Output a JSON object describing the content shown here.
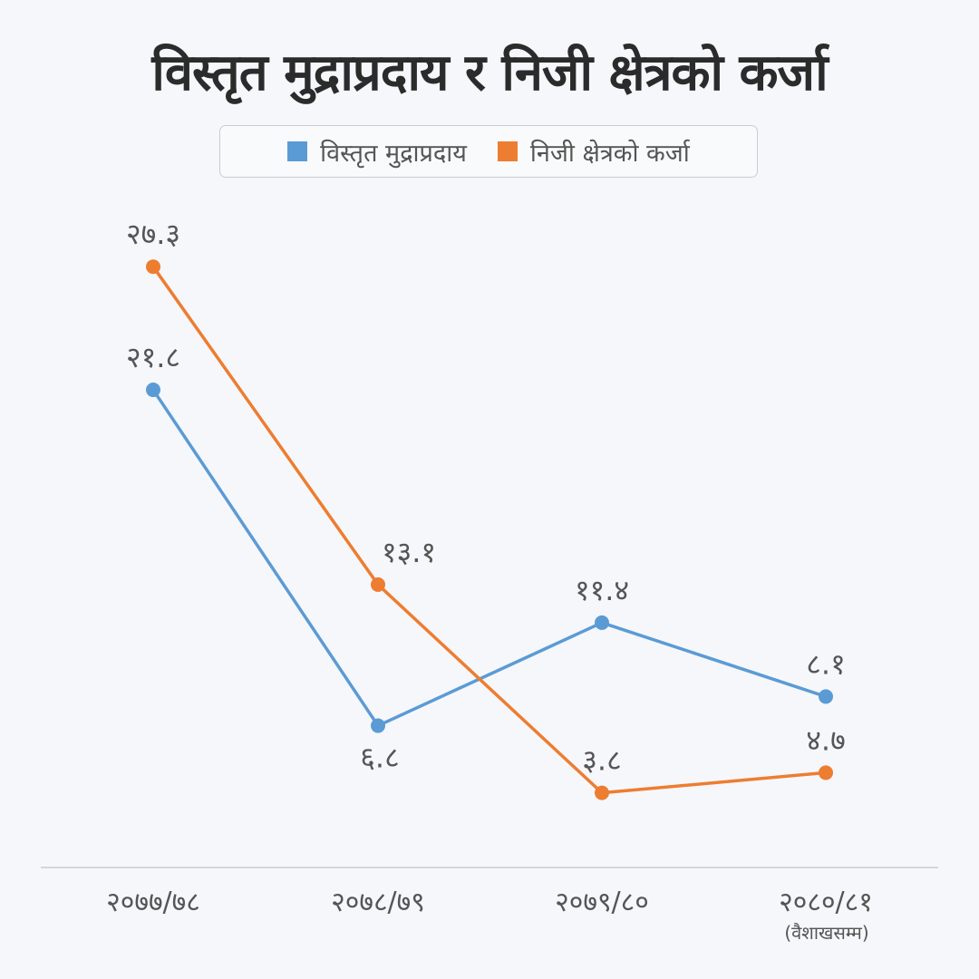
{
  "chart_data": {
    "type": "line",
    "title": "विस्तृत मुद्राप्रदाय र निजी क्षेत्रको कर्जा",
    "categories": [
      "२०७७/७८",
      "२०७८/७९",
      "२०७९/८०",
      "२०८०/८१"
    ],
    "category_notes": [
      "",
      "",
      "",
      "(वैशाखसम्म)"
    ],
    "series": [
      {
        "name": "विस्तृत मुद्राप्रदाय",
        "color": "#5b9bd5",
        "values": [
          21.8,
          6.8,
          11.4,
          8.1
        ],
        "labels": [
          "२१.८",
          "६.८",
          "११.४",
          "८.१"
        ],
        "label_pos": [
          "above",
          "below",
          "above",
          "above"
        ]
      },
      {
        "name": "निजी क्षेत्रको कर्जा",
        "color": "#ed7d31",
        "values": [
          27.3,
          13.1,
          3.8,
          4.7
        ],
        "labels": [
          "२७.३",
          "१३.१",
          "३.८",
          "४.७"
        ],
        "label_pos": [
          "above",
          "above",
          "above",
          "above"
        ]
      }
    ],
    "ylim": [
      0,
      30
    ],
    "grid": false,
    "legend": "top"
  }
}
